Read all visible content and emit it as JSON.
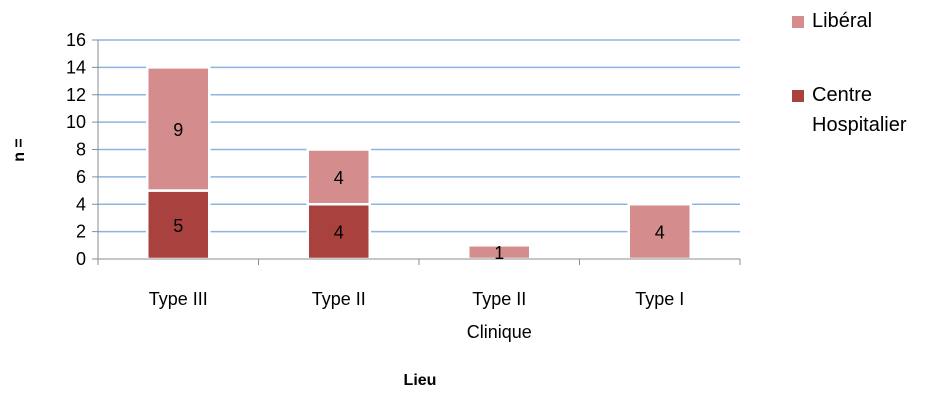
{
  "chart_data": {
    "type": "bar",
    "stacked": true,
    "categories": [
      [
        "Type III"
      ],
      [
        "Type II"
      ],
      [
        "Type II",
        "Clinique"
      ],
      [
        "Type I"
      ]
    ],
    "series": [
      {
        "name": "Centre Hospitalier",
        "legend_lines": [
          "Centre",
          "Hospitalier"
        ],
        "values": [
          5,
          4,
          0,
          0
        ],
        "color": "#A9413F",
        "labels": [
          "5",
          "4",
          "",
          ""
        ]
      },
      {
        "name": "Libéral",
        "legend_lines": [
          "Libéral"
        ],
        "values": [
          9,
          4,
          1,
          4
        ],
        "color": "#D48D8C",
        "labels": [
          "9",
          "4",
          "1",
          "4"
        ]
      }
    ],
    "y_ticks": [
      "0",
      "2",
      "4",
      "6",
      "8",
      "10",
      "12",
      "14",
      "16"
    ],
    "ylim": [
      0,
      16
    ],
    "grid": true,
    "grid_color": "#8DB4E2",
    "xlabel": "Lieu",
    "ylabel": "n =",
    "legend_position": "right"
  }
}
